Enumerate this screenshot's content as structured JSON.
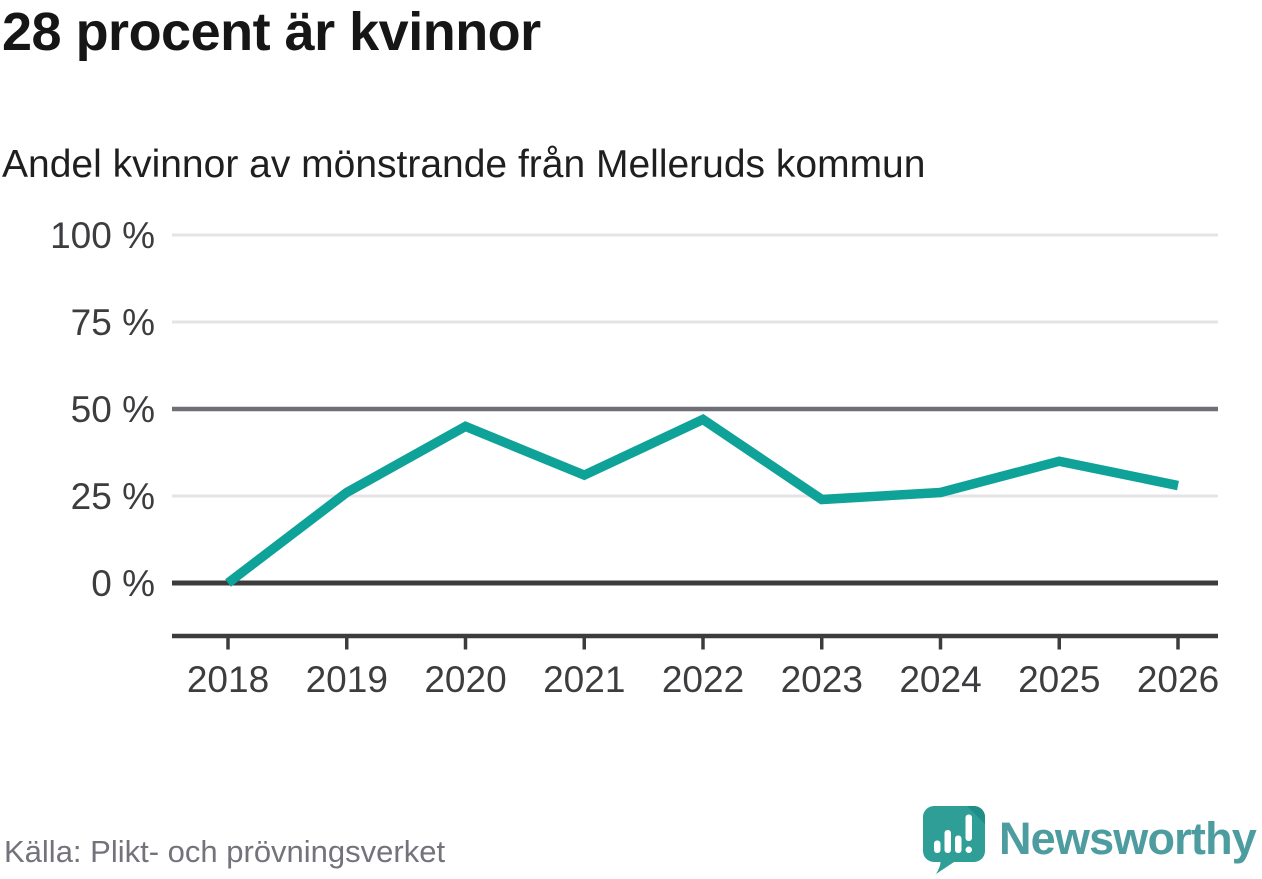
{
  "header": {
    "title": "28 procent är kvinnor",
    "subtitle": "Andel kvinnor av mönstrande från Melleruds kommun"
  },
  "chart_data": {
    "type": "line",
    "title": "28 procent är kvinnor",
    "subtitle": "Andel kvinnor av mönstrande från Melleruds kommun",
    "x": [
      "2018",
      "2019",
      "2020",
      "2021",
      "2022",
      "2023",
      "2024",
      "2025",
      "2026"
    ],
    "series": [
      {
        "name": "Andel kvinnor av mönstrande",
        "values": [
          0,
          26,
          45,
          31,
          47,
          24,
          26,
          35,
          28
        ]
      }
    ],
    "unit": "%",
    "ylim": [
      0,
      100
    ],
    "yticks": [
      0,
      25,
      50,
      75,
      100
    ],
    "ytick_labels": [
      "0 %",
      "25 %",
      "50 %",
      "75 %",
      "100 %"
    ],
    "grid": "horizontal",
    "legend": "none",
    "line_color": "#0fa299",
    "emphasized_gridlines": {
      "baseline": 0,
      "half": 50
    }
  },
  "footer": {
    "source": "Källa: Plikt- och prövningsverket",
    "brand_name": "Newsworthy"
  },
  "colors": {
    "line": "#0fa299",
    "grid_light": "#e4e4e6",
    "grid_half": "#6f6f78",
    "axis_dark": "#3c3c3e",
    "text_axis": "#3d3d40",
    "text_source": "#73737b",
    "brand_teal": "#4d9c9f",
    "logo_fill": "#2f9e97",
    "logo_fold": "#1f8e88",
    "logo_glyph": "#ffffff"
  },
  "icons": {
    "newsworthy-logo-icon": "speech-bubble with bar chart and exclamation mark"
  }
}
